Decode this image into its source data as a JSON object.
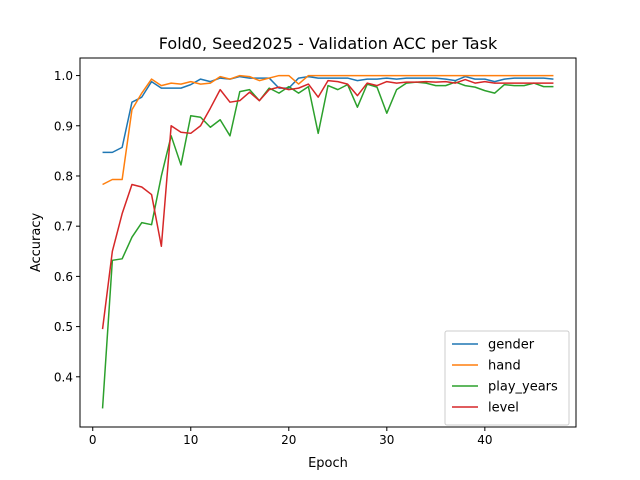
{
  "chart_data": {
    "type": "line",
    "title": "Fold0, Seed2025 - Validation ACC per Task",
    "xlabel": "Epoch",
    "ylabel": "Accuracy",
    "xlim": [
      -1.3,
      49.3
    ],
    "ylim": [
      0.3,
      1.035
    ],
    "xticks": [
      0,
      10,
      20,
      30,
      40
    ],
    "yticks": [
      0.4,
      0.5,
      0.6,
      0.7,
      0.8,
      0.9,
      1.0
    ],
    "xtick_labels": [
      "0",
      "10",
      "20",
      "30",
      "40"
    ],
    "ytick_labels": [
      "0.4",
      "0.5",
      "0.6",
      "0.7",
      "0.8",
      "0.9",
      "1.0"
    ],
    "grid": false,
    "legend_position": "lower-right",
    "x": [
      1,
      2,
      3,
      4,
      5,
      6,
      7,
      8,
      9,
      10,
      11,
      12,
      13,
      14,
      15,
      16,
      17,
      18,
      19,
      20,
      21,
      22,
      23,
      24,
      25,
      26,
      27,
      28,
      29,
      30,
      31,
      32,
      33,
      34,
      35,
      36,
      37,
      38,
      39,
      40,
      41,
      42,
      43,
      44,
      45,
      46,
      47
    ],
    "series": [
      {
        "name": "gender",
        "color": "#1f77b4",
        "values": [
          0.847,
          0.847,
          0.857,
          0.947,
          0.957,
          0.988,
          0.975,
          0.975,
          0.975,
          0.982,
          0.993,
          0.988,
          0.995,
          0.993,
          0.998,
          0.995,
          0.995,
          0.995,
          0.975,
          0.975,
          0.995,
          0.998,
          0.995,
          0.995,
          0.995,
          0.995,
          0.99,
          0.993,
          0.993,
          0.995,
          0.993,
          0.995,
          0.995,
          0.995,
          0.995,
          0.993,
          0.99,
          0.998,
          0.993,
          0.993,
          0.988,
          0.993,
          0.995,
          0.995,
          0.995,
          0.995,
          0.993
        ]
      },
      {
        "name": "hand",
        "color": "#ff7f0e",
        "values": [
          0.783,
          0.793,
          0.793,
          0.932,
          0.965,
          0.993,
          0.98,
          0.985,
          0.983,
          0.988,
          0.983,
          0.985,
          0.998,
          0.993,
          1.0,
          0.998,
          0.99,
          0.995,
          1.0,
          1.0,
          0.983,
          1.0,
          1.0,
          1.0,
          1.0,
          1.0,
          1.0,
          1.0,
          1.0,
          1.0,
          1.0,
          1.0,
          1.0,
          1.0,
          1.0,
          1.0,
          1.0,
          1.0,
          1.0,
          1.0,
          1.0,
          1.0,
          1.0,
          1.0,
          1.0,
          1.0,
          1.0
        ]
      },
      {
        "name": "play_years",
        "color": "#2ca02c",
        "values": [
          0.337,
          0.632,
          0.635,
          0.678,
          0.707,
          0.703,
          0.8,
          0.88,
          0.822,
          0.92,
          0.917,
          0.897,
          0.912,
          0.88,
          0.968,
          0.972,
          0.95,
          0.975,
          0.965,
          0.978,
          0.965,
          0.978,
          0.885,
          0.98,
          0.972,
          0.982,
          0.937,
          0.983,
          0.977,
          0.925,
          0.972,
          0.985,
          0.987,
          0.985,
          0.98,
          0.98,
          0.987,
          0.98,
          0.977,
          0.97,
          0.965,
          0.982,
          0.98,
          0.98,
          0.985,
          0.978,
          0.978
        ]
      },
      {
        "name": "level",
        "color": "#d62728",
        "values": [
          0.495,
          0.65,
          0.725,
          0.783,
          0.778,
          0.763,
          0.66,
          0.9,
          0.887,
          0.885,
          0.9,
          0.935,
          0.972,
          0.947,
          0.95,
          0.967,
          0.95,
          0.972,
          0.977,
          0.972,
          0.975,
          0.983,
          0.957,
          0.99,
          0.988,
          0.983,
          0.96,
          0.985,
          0.98,
          0.988,
          0.985,
          0.987,
          0.987,
          0.988,
          0.987,
          0.988,
          0.985,
          0.992,
          0.985,
          0.988,
          0.985,
          0.985,
          0.985,
          0.985,
          0.985,
          0.985,
          0.985
        ]
      }
    ]
  }
}
